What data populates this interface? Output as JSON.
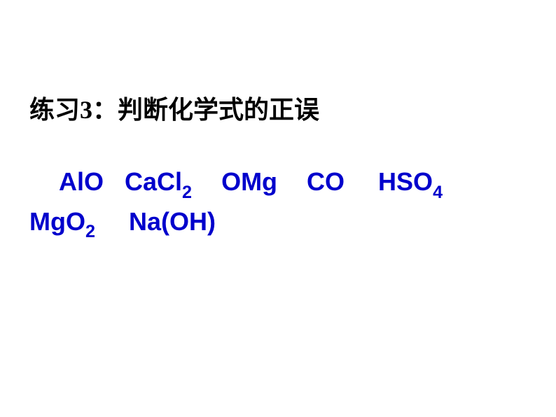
{
  "title": "练习3：判断化学式的正误",
  "formulas": {
    "f1": {
      "text": "AlO"
    },
    "f2": {
      "base": "CaCl",
      "sub": "2"
    },
    "f3": {
      "text": "OMg"
    },
    "f4": {
      "text": "CO"
    },
    "f5": {
      "base": "HSO",
      "sub": "4"
    },
    "f6": {
      "base": "MgO",
      "sub": "2"
    },
    "f7": {
      "text": "Na(OH)"
    }
  },
  "colors": {
    "title_color": "#000000",
    "formula_color": "#0000cc",
    "background": "#ffffff"
  },
  "typography": {
    "title_fontsize": 36,
    "formula_fontsize": 36,
    "title_weight": "bold",
    "formula_weight": "bold"
  }
}
